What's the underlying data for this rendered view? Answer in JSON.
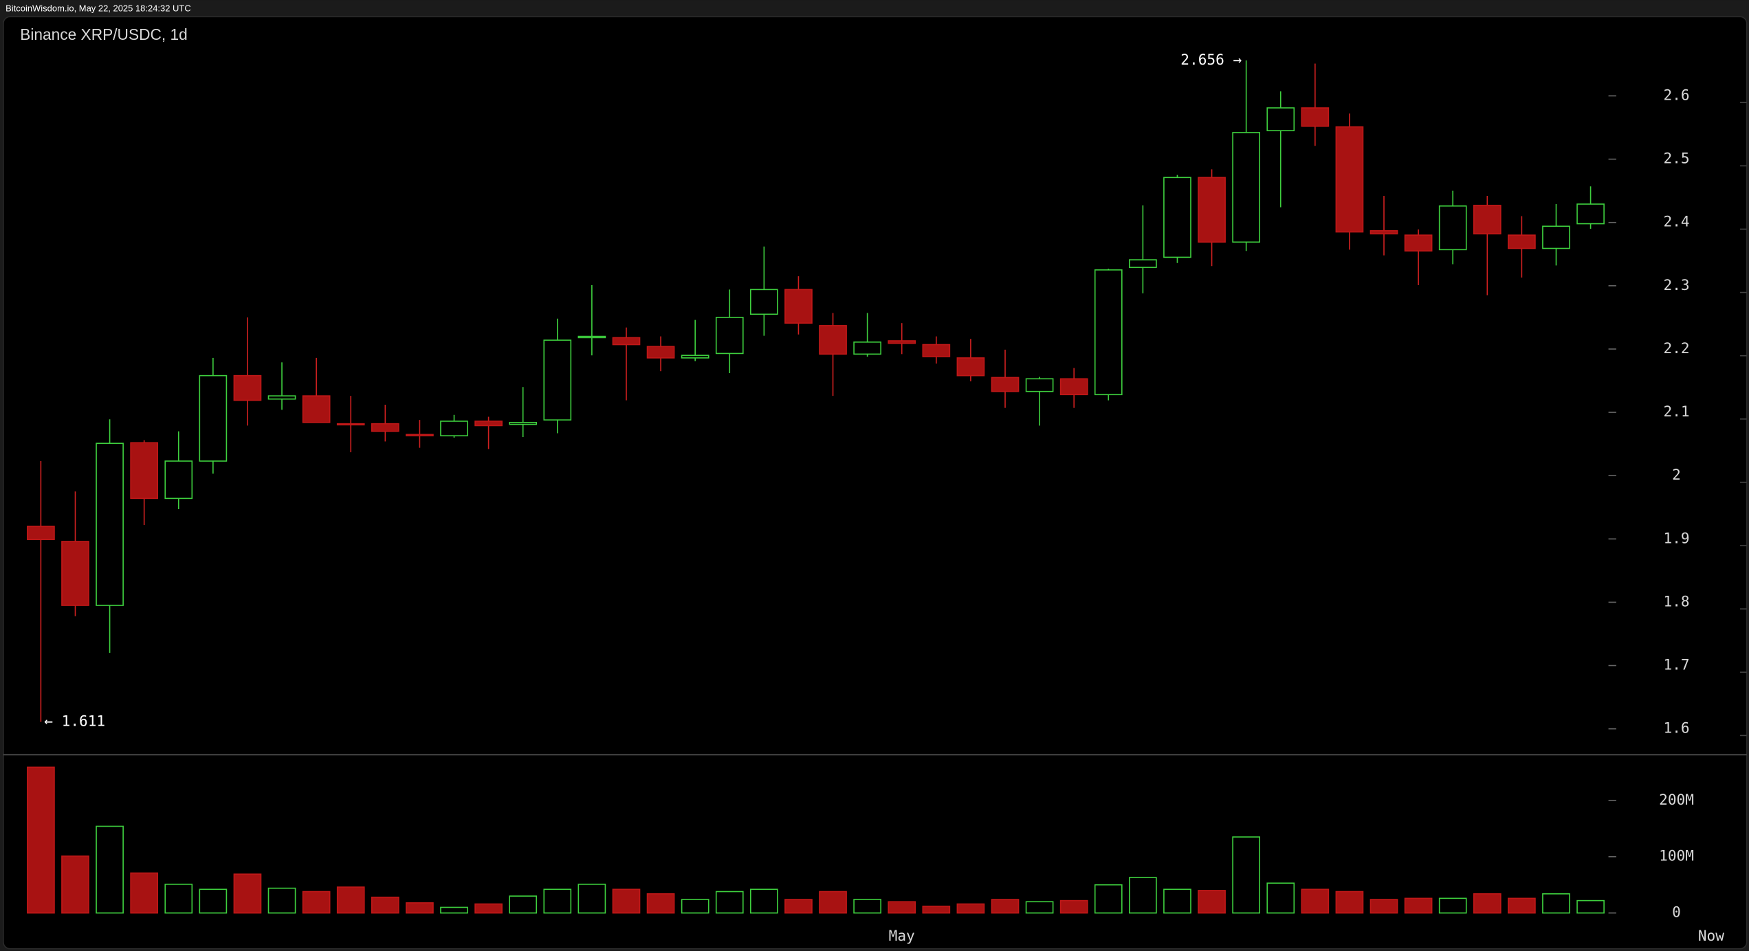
{
  "chart_data": {
    "type": "candlestick",
    "header": "BitcoinWisdom.io, May 22, 2025 18:24:32 UTC",
    "title": "Binance XRP/USDC, 1d",
    "open": [
      1.92,
      1.896,
      1.795,
      2.052,
      1.964,
      2.023,
      2.158,
      2.121,
      2.126,
      2.082,
      2.082,
      2.065,
      2.063,
      2.086,
      2.081,
      2.088,
      2.218,
      2.218,
      2.204,
      2.186,
      2.193,
      2.255,
      2.294,
      2.237,
      2.192,
      2.213,
      2.207,
      2.186,
      2.155,
      2.133,
      2.153,
      2.128,
      2.329,
      2.345,
      2.471,
      2.369,
      2.545,
      2.581,
      2.551,
      2.387,
      2.38,
      2.357,
      2.427,
      2.38,
      2.359,
      2.398
    ],
    "high": [
      2.023,
      1.975,
      2.089,
      2.056,
      2.07,
      2.186,
      2.25,
      2.179,
      2.186,
      2.126,
      2.112,
      2.088,
      2.096,
      2.093,
      2.14,
      2.248,
      2.301,
      2.234,
      2.22,
      2.246,
      2.294,
      2.362,
      2.315,
      2.257,
      2.257,
      2.241,
      2.22,
      2.216,
      2.199,
      2.156,
      2.17,
      2.327,
      2.427,
      2.475,
      2.484,
      2.656,
      2.607,
      2.651,
      2.572,
      2.442,
      2.389,
      2.45,
      2.442,
      2.41,
      2.429,
      2.457
    ],
    "low": [
      1.611,
      1.778,
      1.72,
      1.922,
      1.947,
      2.003,
      2.079,
      2.104,
      2.084,
      2.037,
      2.054,
      2.044,
      2.06,
      2.042,
      2.061,
      2.067,
      2.19,
      2.119,
      2.165,
      2.181,
      2.162,
      2.221,
      2.223,
      2.126,
      2.188,
      2.192,
      2.177,
      2.149,
      2.107,
      2.079,
      2.107,
      2.119,
      2.288,
      2.336,
      2.331,
      2.355,
      2.424,
      2.521,
      2.357,
      2.348,
      2.301,
      2.334,
      2.285,
      2.313,
      2.332,
      2.39
    ],
    "close": [
      1.899,
      1.795,
      2.051,
      1.964,
      2.023,
      2.158,
      2.119,
      2.126,
      2.084,
      2.081,
      2.07,
      2.063,
      2.086,
      2.079,
      2.084,
      2.214,
      2.22,
      2.207,
      2.186,
      2.19,
      2.25,
      2.294,
      2.241,
      2.192,
      2.211,
      2.209,
      2.188,
      2.158,
      2.133,
      2.153,
      2.128,
      2.325,
      2.341,
      2.471,
      2.369,
      2.542,
      2.581,
      2.552,
      2.385,
      2.382,
      2.355,
      2.426,
      2.382,
      2.359,
      2.394,
      2.429
    ],
    "volume": [
      259000000,
      101000000,
      154000000,
      71000000,
      51000000,
      42000000,
      69000000,
      44000000,
      38000000,
      46000000,
      28000000,
      18000000,
      10000000,
      16000000,
      30000000,
      42000000,
      51000000,
      42000000,
      34000000,
      24000000,
      38000000,
      42000000,
      24000000,
      38000000,
      24000000,
      20000000,
      12000000,
      16000000,
      24000000,
      20000000,
      22000000,
      50000000,
      63000000,
      42000000,
      40000000,
      135000000,
      53000000,
      42000000,
      38000000,
      24000000,
      26000000,
      26000000,
      34000000,
      26000000,
      34000000,
      22000000
    ],
    "up_color": "#3ecf3e",
    "down_color": "#a81212",
    "ylim": [
      1.559,
      2.725
    ],
    "yticks": [
      1.6,
      1.7,
      1.8,
      1.9,
      2,
      2.1,
      2.2,
      2.3,
      2.4,
      2.5,
      2.6
    ],
    "volume_ylim": [
      -18000000,
      281000000
    ],
    "volume_yticks": [
      {
        "value": 0,
        "label": "0"
      },
      {
        "value": 100000000,
        "label": "100M"
      },
      {
        "value": 200000000,
        "label": "200M"
      }
    ],
    "xlim": [
      -0.7,
      49.6
    ],
    "xticks": [
      {
        "value": 25,
        "label": "May"
      },
      {
        "value": 48.5,
        "label": "Now"
      }
    ],
    "max_label": {
      "value": 2.656,
      "label": "2.656 →"
    },
    "min_label": {
      "value": 1.611,
      "label": "← 1.611"
    }
  }
}
